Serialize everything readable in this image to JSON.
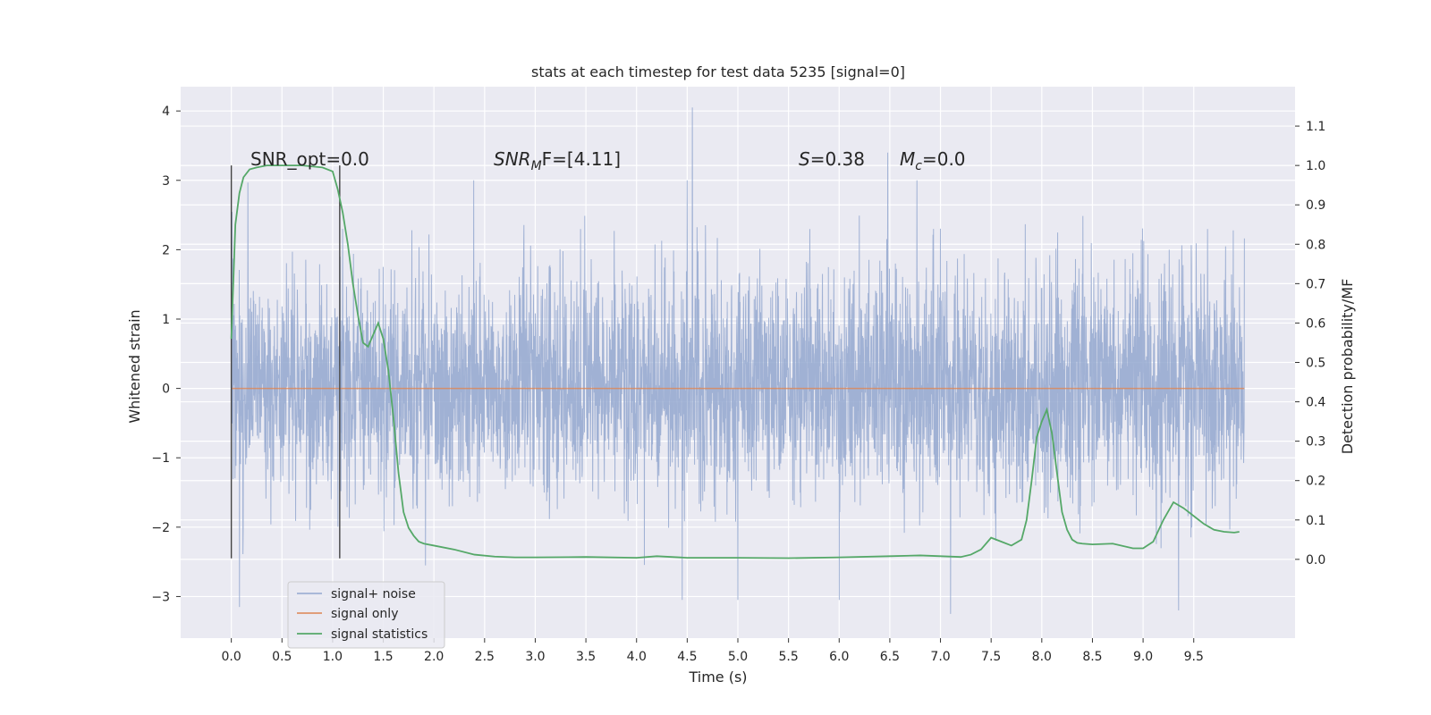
{
  "chart_data": {
    "type": "line",
    "title": "stats at each timestep for test data 5235 [signal=0]",
    "xlabel": "Time (s)",
    "ylabel": "Whitened strain",
    "ylabel_right": "Detection probability/MF",
    "xlim": [
      -0.5,
      10.5
    ],
    "ylim": [
      -3.6,
      4.35
    ],
    "ylim_right": [
      -0.2,
      1.2
    ],
    "x_ticks": [
      "0.0",
      "0.5",
      "1.0",
      "1.5",
      "2.0",
      "2.5",
      "3.0",
      "3.5",
      "4.0",
      "4.5",
      "5.0",
      "5.5",
      "6.0",
      "6.5",
      "7.0",
      "7.5",
      "8.0",
      "8.5",
      "9.0",
      "9.5"
    ],
    "y_ticks": [
      "4",
      "3",
      "2",
      "1",
      "0",
      "−1",
      "−2",
      "−3"
    ],
    "y_right_ticks": [
      "1.1",
      "1.0",
      "0.9",
      "0.8",
      "0.7",
      "0.6",
      "0.5",
      "0.4",
      "0.3",
      "0.2",
      "0.1",
      "0.0"
    ],
    "grid": true,
    "legend_position": "lower-left",
    "annotations": {
      "snr_opt": "SNR_opt=0.0",
      "snr_mf_var": "SNR",
      "snr_mf_sub": "M",
      "snr_mf_rest": "F=[4.11]",
      "s_var": "S",
      "s_rest": "=0.38",
      "mc_var": "M",
      "mc_sub": "c",
      "mc_rest": "=0.0"
    },
    "vertical_markers": [
      0.0,
      1.07
    ],
    "series": [
      {
        "name": "signal+ noise",
        "color": "#93a7cf",
        "sampling_rate": 409.6,
        "x_range": [
          0.0,
          10.0
        ],
        "envelope_typical": [
          -1.8,
          2.4
        ],
        "spikes": [
          [
            0.08,
            -3.15
          ],
          [
            4.55,
            4.05
          ],
          [
            4.5,
            3.0
          ],
          [
            6.48,
            3.4
          ],
          [
            5.0,
            -3.05
          ],
          [
            7.1,
            -3.25
          ],
          [
            9.35,
            -3.2
          ],
          [
            4.45,
            -3.05
          ],
          [
            6.0,
            -3.05
          ]
        ]
      },
      {
        "name": "signal only",
        "color": "#dd8452",
        "values_constant": 0.0,
        "x_range": [
          0.0,
          10.0
        ]
      },
      {
        "name": "signal statistics",
        "color": "#55a868",
        "axis": "right",
        "x": [
          0.0,
          0.04,
          0.08,
          0.12,
          0.18,
          0.25,
          0.35,
          0.5,
          0.7,
          0.9,
          1.0,
          1.05,
          1.1,
          1.15,
          1.2,
          1.25,
          1.3,
          1.35,
          1.4,
          1.45,
          1.5,
          1.55,
          1.6,
          1.65,
          1.7,
          1.75,
          1.8,
          1.85,
          1.9,
          2.0,
          2.2,
          2.4,
          2.6,
          2.8,
          3.0,
          3.5,
          4.0,
          4.2,
          4.5,
          5.0,
          5.5,
          6.0,
          6.5,
          6.8,
          7.0,
          7.2,
          7.3,
          7.4,
          7.5,
          7.6,
          7.7,
          7.8,
          7.85,
          7.9,
          7.95,
          8.0,
          8.05,
          8.1,
          8.15,
          8.2,
          8.25,
          8.3,
          8.35,
          8.4,
          8.5,
          8.7,
          8.9,
          9.0,
          9.1,
          9.2,
          9.3,
          9.4,
          9.5,
          9.6,
          9.7,
          9.8,
          9.9,
          9.95
        ],
        "values": [
          0.56,
          0.85,
          0.93,
          0.97,
          0.99,
          0.995,
          1.0,
          1.0,
          1.0,
          0.995,
          0.985,
          0.94,
          0.88,
          0.8,
          0.7,
          0.62,
          0.55,
          0.54,
          0.57,
          0.6,
          0.56,
          0.48,
          0.36,
          0.22,
          0.12,
          0.08,
          0.06,
          0.045,
          0.04,
          0.035,
          0.025,
          0.012,
          0.007,
          0.005,
          0.005,
          0.006,
          0.004,
          0.008,
          0.004,
          0.004,
          0.003,
          0.005,
          0.008,
          0.01,
          0.008,
          0.006,
          0.012,
          0.025,
          0.055,
          0.045,
          0.035,
          0.05,
          0.1,
          0.2,
          0.31,
          0.35,
          0.38,
          0.32,
          0.22,
          0.12,
          0.075,
          0.05,
          0.042,
          0.04,
          0.038,
          0.04,
          0.028,
          0.028,
          0.045,
          0.1,
          0.145,
          0.13,
          0.11,
          0.09,
          0.075,
          0.07,
          0.068,
          0.07
        ]
      }
    ]
  }
}
